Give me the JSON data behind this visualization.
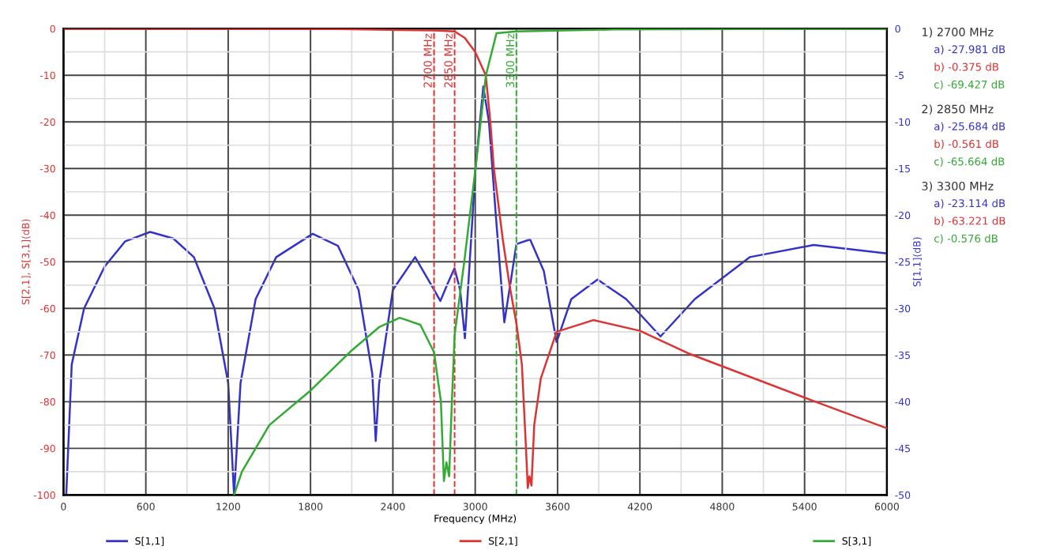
{
  "chart_data": {
    "type": "line",
    "xlabel": "Frequency (MHz)",
    "ylabel": "S[2,1], S[3,1](dB)",
    "y2label": "S[1,1](dB)",
    "xlim": [
      0,
      6000
    ],
    "xticks": [
      0,
      600,
      1200,
      1800,
      2400,
      3000,
      3600,
      4200,
      4800,
      5400,
      6000
    ],
    "ylim": [
      -100,
      0
    ],
    "yticks": [
      -100,
      -90,
      -80,
      -70,
      -60,
      -50,
      -40,
      -30,
      -20,
      -10,
      0
    ],
    "y2lim": [
      -50,
      0
    ],
    "y2ticks": [
      -50,
      -45,
      -40,
      -35,
      -30,
      -25,
      -20,
      -15,
      -10,
      -5,
      0
    ],
    "grid": true,
    "legend": "bottom",
    "marker": "none",
    "line_style": "solid",
    "series": [
      {
        "name": "S[1,1]",
        "color": "#3333cc",
        "axis": "y2",
        "x": [
          20,
          60,
          150,
          300,
          450,
          631,
          800,
          950,
          1100,
          1200,
          1243,
          1290,
          1400,
          1550,
          1816,
          2000,
          2150,
          2250,
          2275,
          2300,
          2400,
          2562,
          2700,
          2746,
          2800,
          2849,
          2890,
          2925,
          2960,
          3002,
          3059,
          3100,
          3150,
          3212,
          3260,
          3300,
          3400,
          3500,
          3593,
          3700,
          3891,
          4100,
          4350,
          4600,
          5000,
          5466,
          6000
        ],
        "values": [
          -50,
          -36,
          -30,
          -25.5,
          -22.8,
          -21.8,
          -22.5,
          -24.5,
          -30,
          -38,
          -50,
          -38,
          -29,
          -24.5,
          -22,
          -23.3,
          -28,
          -37,
          -44.2,
          -38,
          -28,
          -24.5,
          -28,
          -29.2,
          -27.3,
          -25.7,
          -28,
          -33.2,
          -25,
          -15,
          -6.2,
          -10,
          -20,
          -31.5,
          -27,
          -23.1,
          -22.6,
          -26,
          -33.6,
          -29,
          -26.9,
          -29,
          -33,
          -29,
          -24.5,
          -23.2,
          -24.1
        ]
      },
      {
        "name": "S[2,1]",
        "color": "#dd3333",
        "x": [
          0,
          2000,
          2700,
          2850,
          2924,
          3000,
          3077,
          3110,
          3136,
          3200,
          3250,
          3300,
          3340,
          3370,
          3383,
          3395,
          3410,
          3430,
          3478,
          3593,
          3860,
          4200,
          4550,
          5460,
          6000
        ],
        "values": [
          0,
          -0.1,
          -0.4,
          -0.6,
          -2,
          -5,
          -10,
          -20,
          -30,
          -45,
          -55,
          -63.2,
          -72,
          -90,
          -98.5,
          -96,
          -98,
          -85,
          -75,
          -65,
          -62.5,
          -64.8,
          -69.6,
          -79.8,
          -85.7
        ]
      },
      {
        "name": "S[3,1]",
        "color": "#33aa33",
        "x": [
          1243,
          1300,
          1500,
          1800,
          2100,
          2300,
          2450,
          2600,
          2700,
          2750,
          2772,
          2790,
          2810,
          2830,
          2850,
          2920,
          3002,
          3078,
          3155,
          3300,
          4000,
          6000
        ],
        "values": [
          -100,
          -95,
          -85,
          -77.6,
          -69,
          -64,
          -62,
          -63.5,
          -69.4,
          -80,
          -97,
          -93,
          -96,
          -80,
          -65.7,
          -50,
          -30,
          -10,
          -1,
          -0.6,
          -0.2,
          0
        ]
      }
    ],
    "ref_lines": [
      {
        "axis": "x",
        "value": 2700,
        "label": "2700 MHz",
        "color": "#dd3333",
        "line_style": "dashed"
      },
      {
        "axis": "x",
        "value": 2850,
        "label": "2850 MHz",
        "color": "#dd3333",
        "line_style": "dashed"
      },
      {
        "axis": "x",
        "value": 3300,
        "label": "3300 MHz",
        "color": "#33aa33",
        "line_style": "dashed"
      }
    ],
    "annotations": [
      "1) 2700 MHz",
      "a) -27.981 dB",
      "b) -0.375 dB",
      "c) -69.427 dB",
      "2) 2850 MHz",
      "a) -25.684 dB",
      "b) -0.561 dB",
      "c) -65.664 dB",
      "3) 3300 MHz",
      "a) -23.114 dB",
      "b) -63.221 dB",
      "c) -0.576 dB"
    ]
  }
}
